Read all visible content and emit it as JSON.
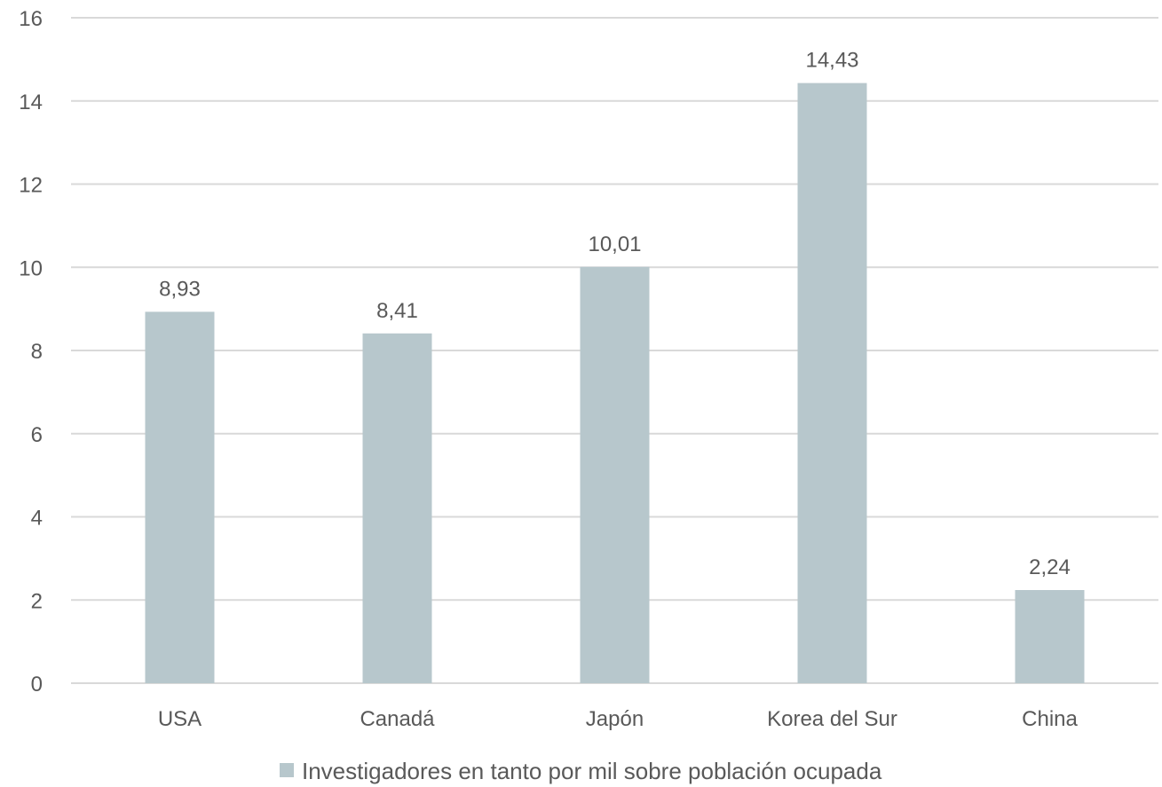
{
  "chart_data": {
    "type": "bar",
    "categories": [
      "USA",
      "Canadá",
      "Japón",
      "Korea del Sur",
      "China"
    ],
    "series": [
      {
        "name": "Investigadores en tanto por mil sobre población ocupada",
        "values": [
          8.93,
          8.41,
          10.01,
          14.43,
          2.24
        ],
        "data_labels": [
          "8,93",
          "8,41",
          "10,01",
          "14,43",
          "2,24"
        ],
        "color": "#b7c7cc"
      }
    ],
    "ylim": [
      0,
      16
    ],
    "yticks": [
      0,
      2,
      4,
      6,
      8,
      10,
      12,
      14,
      16
    ],
    "grid": true,
    "legend_position": "bottom",
    "gridline_color": "#d9d9d9",
    "text_color": "#595959"
  }
}
